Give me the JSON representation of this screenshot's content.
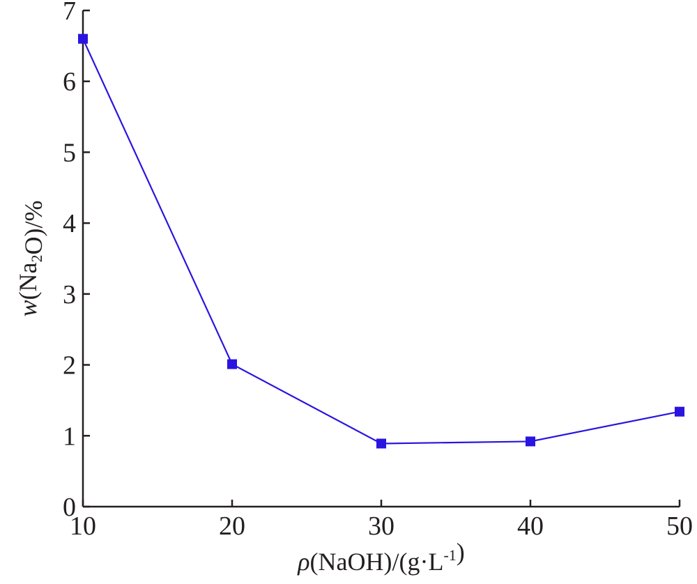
{
  "chart_data": {
    "type": "line",
    "title": "",
    "xlabel": {
      "parts": [
        {
          "text": "ρ",
          "style": "italic"
        },
        {
          "text": "(NaOH)/(g·L"
        },
        {
          "text": "-1",
          "style": "sup"
        },
        {
          "text": ")"
        }
      ]
    },
    "ylabel": {
      "parts": [
        {
          "text": "w",
          "style": "italic"
        },
        {
          "text": "(Na"
        },
        {
          "text": "2",
          "style": "sub"
        },
        {
          "text": "O)/%"
        }
      ]
    },
    "xlim": [
      10,
      50
    ],
    "ylim": [
      0,
      7
    ],
    "xticks": [
      10,
      20,
      30,
      40,
      50
    ],
    "yticks": [
      0,
      1,
      2,
      3,
      4,
      5,
      6,
      7
    ],
    "grid": false,
    "colors": {
      "series": "#2a14e0",
      "axis": "#231f20"
    },
    "series": [
      {
        "marker": "square",
        "x": [
          10,
          20,
          30,
          40,
          50
        ],
        "y": [
          6.6,
          2.01,
          0.89,
          0.92,
          1.34
        ]
      }
    ]
  }
}
